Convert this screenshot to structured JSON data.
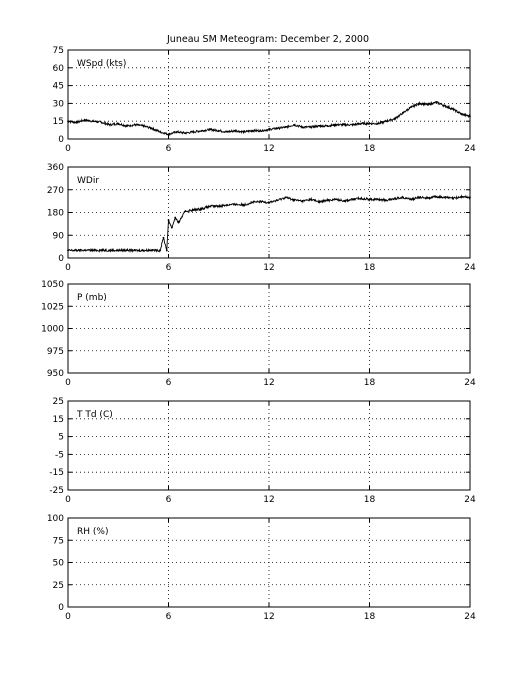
{
  "title": "Juneau SM Meteogram:   December  2, 2000",
  "chart_data": [
    {
      "type": "scatter",
      "label": "WSpd (kts)",
      "xlim": [
        0,
        24
      ],
      "ylim": [
        0,
        75
      ],
      "xticks": [
        0,
        6,
        12,
        18,
        24
      ],
      "yticks": [
        0,
        15,
        30,
        45,
        60,
        75
      ],
      "grid": true,
      "series": [
        {
          "x": [
            0,
            0.5,
            1,
            1.5,
            2,
            2.5,
            3,
            3.5,
            4,
            4.5,
            5,
            5.5,
            6,
            6.5,
            7,
            7.5,
            8,
            8.5,
            9,
            9.5,
            10,
            10.5,
            11,
            11.5,
            12,
            12.5,
            13,
            13.5,
            14,
            14.5,
            15,
            15.5,
            16,
            16.5,
            17,
            17.5,
            18,
            18.5,
            19,
            19.5,
            20,
            20.5,
            21,
            21.5,
            22,
            22.5,
            23,
            23.5,
            24
          ],
          "values": [
            15,
            14,
            16,
            15,
            14,
            12,
            13,
            11,
            12,
            11,
            9,
            6,
            4,
            6,
            5,
            6,
            7,
            8,
            7,
            6,
            7,
            6,
            7,
            7,
            8,
            9,
            10,
            12,
            10,
            10,
            11,
            11,
            12,
            12,
            12,
            13,
            13,
            13,
            15,
            17,
            22,
            27,
            30,
            29,
            31,
            28,
            25,
            21,
            19
          ]
        }
      ]
    },
    {
      "type": "scatter",
      "label": "WDir",
      "xlim": [
        0,
        24
      ],
      "ylim": [
        0,
        360
      ],
      "xticks": [
        0,
        6,
        12,
        18,
        24
      ],
      "yticks": [
        0,
        90,
        180,
        270,
        360
      ],
      "grid": true,
      "series": [
        {
          "x": [
            0,
            0.5,
            1,
            1.5,
            2,
            2.5,
            3,
            3.5,
            4,
            4.5,
            5,
            5.5,
            5.7,
            5.9,
            6,
            6.2,
            6.4,
            6.6,
            7,
            7.5,
            8,
            8.5,
            9,
            9.5,
            10,
            10.5,
            11,
            11.5,
            12,
            12.5,
            13,
            13.5,
            14,
            14.5,
            15,
            15.5,
            16,
            16.5,
            17,
            17.5,
            18,
            18.5,
            19,
            19.5,
            20,
            20.5,
            21,
            21.5,
            22,
            22.5,
            23,
            23.5,
            24
          ],
          "values": [
            30,
            30,
            31,
            30,
            31,
            30,
            30,
            31,
            30,
            30,
            31,
            30,
            80,
            30,
            150,
            120,
            160,
            140,
            185,
            190,
            195,
            205,
            205,
            210,
            212,
            210,
            220,
            223,
            220,
            228,
            240,
            230,
            225,
            232,
            222,
            228,
            232,
            226,
            232,
            236,
            232,
            232,
            228,
            235,
            240,
            232,
            240,
            238,
            242,
            240,
            236,
            242,
            240
          ]
        }
      ]
    },
    {
      "type": "scatter",
      "label": "P (mb)",
      "xlim": [
        0,
        24
      ],
      "ylim": [
        950,
        1050
      ],
      "xticks": [
        0,
        6,
        12,
        18,
        24
      ],
      "yticks": [
        950,
        975,
        1000,
        1025,
        1050
      ],
      "grid": true,
      "series": []
    },
    {
      "type": "scatter",
      "label": "T Td (C)",
      "xlim": [
        0,
        24
      ],
      "ylim": [
        -25,
        25
      ],
      "xticks": [
        0,
        6,
        12,
        18,
        24
      ],
      "yticks": [
        -25,
        -15,
        -5,
        5,
        15,
        25
      ],
      "grid": true,
      "series": []
    },
    {
      "type": "scatter",
      "label": "RH (%)",
      "xlim": [
        0,
        24
      ],
      "ylim": [
        0,
        100
      ],
      "xticks": [
        0,
        6,
        12,
        18,
        24
      ],
      "yticks": [
        0,
        25,
        50,
        75,
        100
      ],
      "grid": true,
      "series": []
    }
  ]
}
